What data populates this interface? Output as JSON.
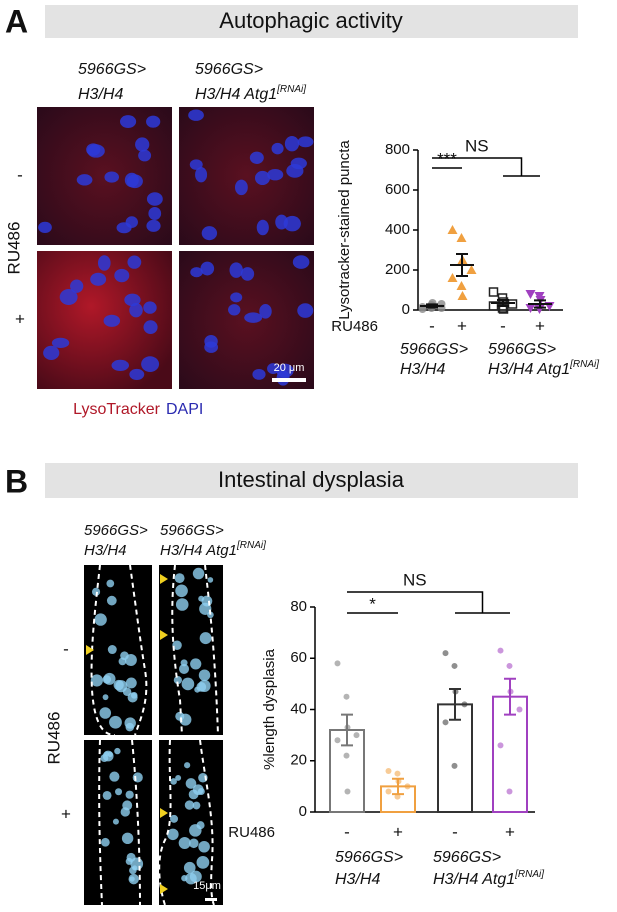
{
  "figure": {
    "panels": [
      {
        "label": "A",
        "title": "Autophagic activity",
        "image_columns": [
          {
            "line1": "5966GS>",
            "line2": "H3/H4"
          },
          {
            "line1": "5966GS>",
            "line2": "H3/H4 Atg1",
            "sup": "[RNAi]"
          }
        ],
        "image_rows": [
          "-",
          "+"
        ],
        "row_axis": "RU486",
        "scale_bar": "20 μm",
        "stain_labels": [
          "LysoTracker",
          "DAPI"
        ]
      },
      {
        "label": "B",
        "title": "Intestinal dysplasia",
        "image_columns": [
          {
            "line1": "5966GS>",
            "line2": "H3/H4"
          },
          {
            "line1": "5966GS>",
            "line2": "H3/H4 Atg1",
            "sup": "[RNAi]"
          }
        ],
        "image_rows": [
          "-",
          "+"
        ],
        "row_axis": "RU486",
        "scale_bar": "15μm"
      }
    ]
  },
  "chart_data": [
    {
      "type": "scatter",
      "ylabel": "Lysotracker-stained puncta",
      "ylim": [
        0,
        800
      ],
      "yticks": [
        0,
        200,
        400,
        600,
        800
      ],
      "category_axis_label": "RU486",
      "categories": [
        "-",
        "+",
        "-",
        "+"
      ],
      "groups": [
        {
          "line1": "5966GS>",
          "line2": "H3/H4"
        },
        {
          "line1": "5966GS>",
          "line2": "H3/H4 Atg1",
          "sup": "[RNAi]"
        }
      ],
      "values": [
        20,
        225,
        35,
        30
      ],
      "errors": [
        8,
        55,
        15,
        18
      ],
      "points": [
        [
          5,
          10,
          20,
          30,
          15,
          25,
          35,
          10
        ],
        [
          400,
          360,
          250,
          200,
          160,
          120,
          70
        ],
        [
          90,
          60,
          40,
          30,
          20,
          10,
          5
        ],
        [
          80,
          70,
          50,
          20,
          10,
          5
        ]
      ],
      "colors": [
        "#8a8a8a",
        "#f0a040",
        "#222222",
        "#a040c0"
      ],
      "markers": [
        "circle",
        "triangle",
        "square",
        "triangle-down"
      ],
      "comparisons": [
        {
          "label": "***"
        },
        {
          "label": "NS"
        }
      ]
    },
    {
      "type": "bar",
      "ylabel": "%length dysplasia",
      "ylim": [
        0,
        80
      ],
      "yticks": [
        0,
        20,
        40,
        60,
        80
      ],
      "category_axis_label": "RU486",
      "categories": [
        "-",
        "+",
        "-",
        "+"
      ],
      "groups": [
        {
          "line1": "5966GS>",
          "line2": "H3/H4"
        },
        {
          "line1": "5966GS>",
          "line2": "H3/H4 Atg1",
          "sup": "[RNAi]"
        }
      ],
      "values": [
        32,
        10,
        42,
        45
      ],
      "errors": [
        6,
        3,
        6,
        7
      ],
      "points": [
        [
          58,
          45,
          33,
          30,
          28,
          22,
          8
        ],
        [
          16,
          15,
          12,
          10,
          8,
          6
        ],
        [
          62,
          57,
          47,
          42,
          35,
          18
        ],
        [
          63,
          57,
          47,
          40,
          26,
          8
        ]
      ],
      "colors": [
        "#777777",
        "#f0a040",
        "#333333",
        "#a040c0"
      ],
      "comparisons": [
        {
          "label": "*"
        },
        {
          "label": "NS"
        }
      ]
    }
  ]
}
